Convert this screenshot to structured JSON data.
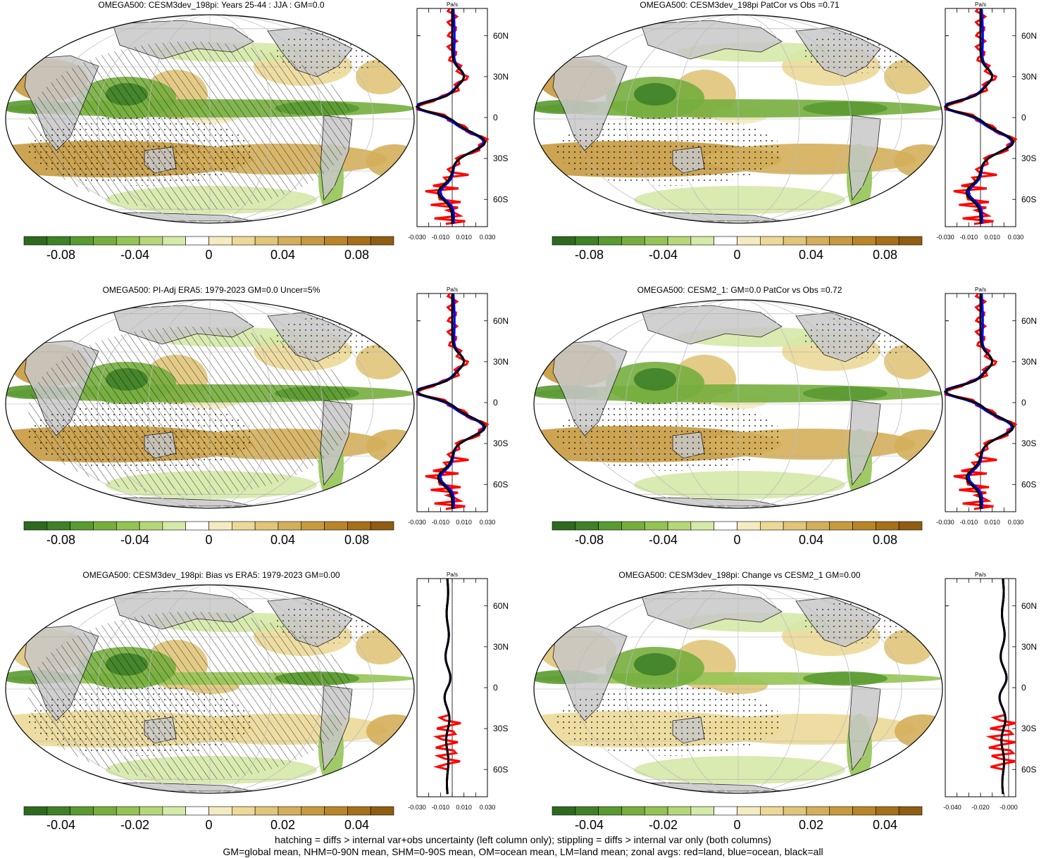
{
  "panels": [
    {
      "id": "p1",
      "title": "OMEGA500: CESM3dev_198pi: Years 25-44 : JJA : GM=0.0",
      "hatched": true,
      "colorbar_ticks": [
        "-0.08",
        "-0.04",
        "0",
        "0.04",
        "0.08"
      ],
      "zonal": {
        "unit": "Pa/s",
        "x_ticks": [
          "-0.030",
          "-0.010",
          "0.010",
          "0.030"
        ],
        "xrange": [
          -0.03,
          0.03
        ],
        "lat_ticks": [
          "60N",
          "30N",
          "0",
          "30S",
          "60S"
        ]
      }
    },
    {
      "id": "p2",
      "title": "OMEGA500: CESM3dev_198pi PatCor vs Obs =0.71",
      "hatched": false,
      "colorbar_ticks": [
        "-0.08",
        "-0.04",
        "0",
        "0.04",
        "0.08"
      ],
      "zonal": {
        "unit": "Pa/s",
        "x_ticks": [
          "-0.030",
          "-0.010",
          "0.010",
          "0.030"
        ],
        "xrange": [
          -0.03,
          0.03
        ],
        "lat_ticks": [
          "60N",
          "30N",
          "0",
          "30S",
          "60S"
        ]
      }
    },
    {
      "id": "p3",
      "title": "OMEGA500: PI-Adj ERA5: 1979-2023 GM=0.0 Uncer=5%",
      "hatched": true,
      "colorbar_ticks": [
        "-0.08",
        "-0.04",
        "0",
        "0.04",
        "0.08"
      ],
      "zonal": {
        "unit": "Pa/s",
        "x_ticks": [
          "-0.030",
          "-0.010",
          "0.010",
          "0.030"
        ],
        "xrange": [
          -0.03,
          0.03
        ],
        "lat_ticks": [
          "60N",
          "30N",
          "0",
          "30S",
          "60S"
        ]
      }
    },
    {
      "id": "p4",
      "title": "OMEGA500: CESM2_1: GM=0.0 PatCor vs Obs =0.72",
      "hatched": false,
      "colorbar_ticks": [
        "-0.08",
        "-0.04",
        "0",
        "0.04",
        "0.08"
      ],
      "zonal": {
        "unit": "Pa/s",
        "x_ticks": [
          "-0.030",
          "-0.010",
          "0.010",
          "0.030"
        ],
        "xrange": [
          -0.03,
          0.03
        ],
        "lat_ticks": [
          "60N",
          "30N",
          "0",
          "30S",
          "60S"
        ]
      }
    },
    {
      "id": "p5",
      "title": "OMEGA500: CESM3dev_198pi: Bias vs ERA5: 1979-2023 GM=0.00",
      "hatched": true,
      "colorbar_ticks": [
        "-0.04",
        "-0.02",
        "0",
        "0.02",
        "0.04"
      ],
      "zonal": {
        "unit": "Pa/s",
        "x_ticks": [
          "-0.030",
          "-0.010",
          "0.010",
          "0.030"
        ],
        "xrange": [
          -0.03,
          0.03
        ],
        "lat_ticks": [
          "60N",
          "30N",
          "0",
          "30S",
          "60S"
        ]
      }
    },
    {
      "id": "p6",
      "title": "OMEGA500: CESM3dev_198pi: Change vs CESM2_1 GM=0.00",
      "hatched": false,
      "colorbar_ticks": [
        "-0.04",
        "-0.02",
        "0",
        "0.02",
        "0.04"
      ],
      "zonal": {
        "unit": "Pa/s",
        "x_ticks": [
          "-0.040",
          "-0.020",
          "-0.000"
        ],
        "xrange": [
          -0.045,
          0.005
        ],
        "lat_ticks": [
          "60N",
          "30N",
          "0",
          "30S",
          "60S"
        ]
      }
    }
  ],
  "colors": {
    "land": "#c8c8c8",
    "land_line": "red",
    "ocean_line": "blue",
    "all_line": "black",
    "palette": [
      "#2d6a1f",
      "#3f8128",
      "#5a9a32",
      "#76ae3e",
      "#95c455",
      "#b5d77a",
      "#d5e9a9",
      "#ffffff",
      "#f4ebc0",
      "#ecd998",
      "#e0c57a",
      "#d4af5b",
      "#c79a3f",
      "#b98528",
      "#a67019",
      "#8f5d12"
    ]
  },
  "footer": {
    "line1": "hatching = diffs > internal var+obs uncertainty (left column only); stippling = diffs > internal var only (both columns)",
    "line2": "GM=global mean, NHM=0-90N mean, SHM=0-90S mean, OM=ocean mean, LM=land mean; zonal avgs: red=land, blue=ocean, black=all"
  }
}
